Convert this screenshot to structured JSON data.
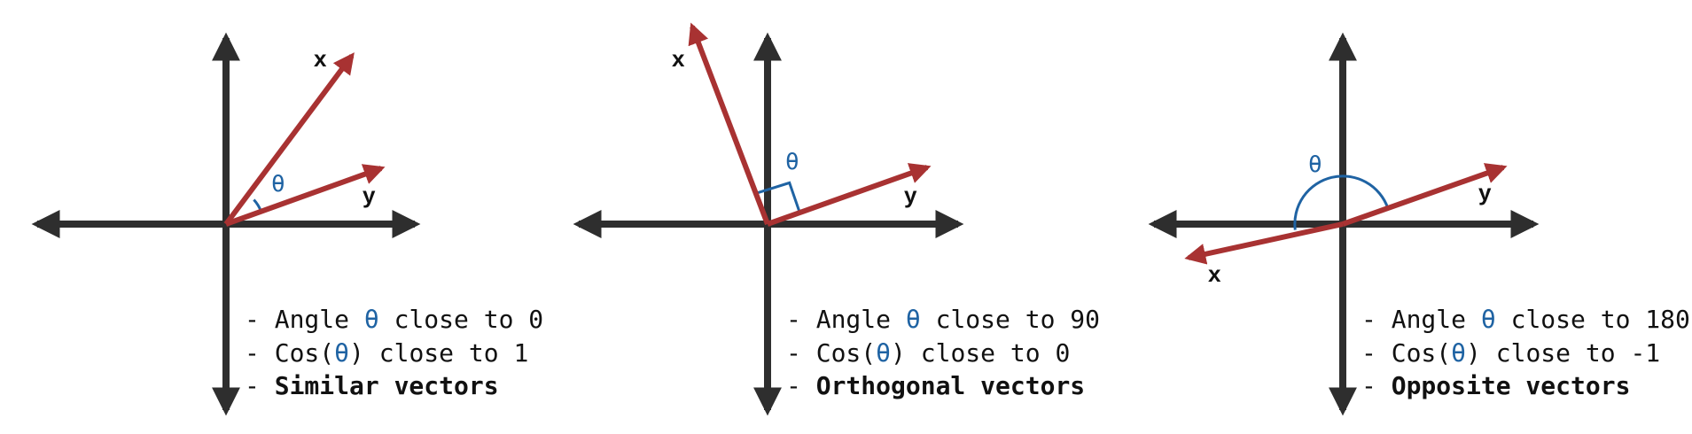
{
  "colors": {
    "axis": "#2e2e2e",
    "vector": "#a83232",
    "angle": "#1f63a3",
    "text": "#111111"
  },
  "panels": [
    {
      "id": "similar",
      "x_label": "x",
      "y_label": "y",
      "theta_symbol": "θ",
      "lines": [
        {
          "prefix": "- ",
          "pre": "Angle ",
          "theta": "θ",
          "post": " close to 0"
        },
        {
          "prefix": "- ",
          "pre": "Cos(",
          "theta": "θ",
          "post": ") close to 1"
        },
        {
          "prefix": "- ",
          "bold": "Similar vectors"
        }
      ]
    },
    {
      "id": "orthogonal",
      "x_label": "x",
      "y_label": "y",
      "theta_symbol": "θ",
      "lines": [
        {
          "prefix": "- ",
          "pre": "Angle ",
          "theta": "θ",
          "post": " close to 90"
        },
        {
          "prefix": "- ",
          "pre": "Cos(",
          "theta": "θ",
          "post": ") close to 0"
        },
        {
          "prefix": "- ",
          "bold": "Orthogonal vectors"
        }
      ]
    },
    {
      "id": "opposite",
      "x_label": "x",
      "y_label": "y",
      "theta_symbol": "θ",
      "lines": [
        {
          "prefix": "- ",
          "pre": "Angle ",
          "theta": "θ",
          "post": " close to 180"
        },
        {
          "prefix": "- ",
          "pre": "Cos(",
          "theta": "θ",
          "post": ") close to -1"
        },
        {
          "prefix": "- ",
          "bold": "Opposite vectors"
        }
      ]
    }
  ]
}
